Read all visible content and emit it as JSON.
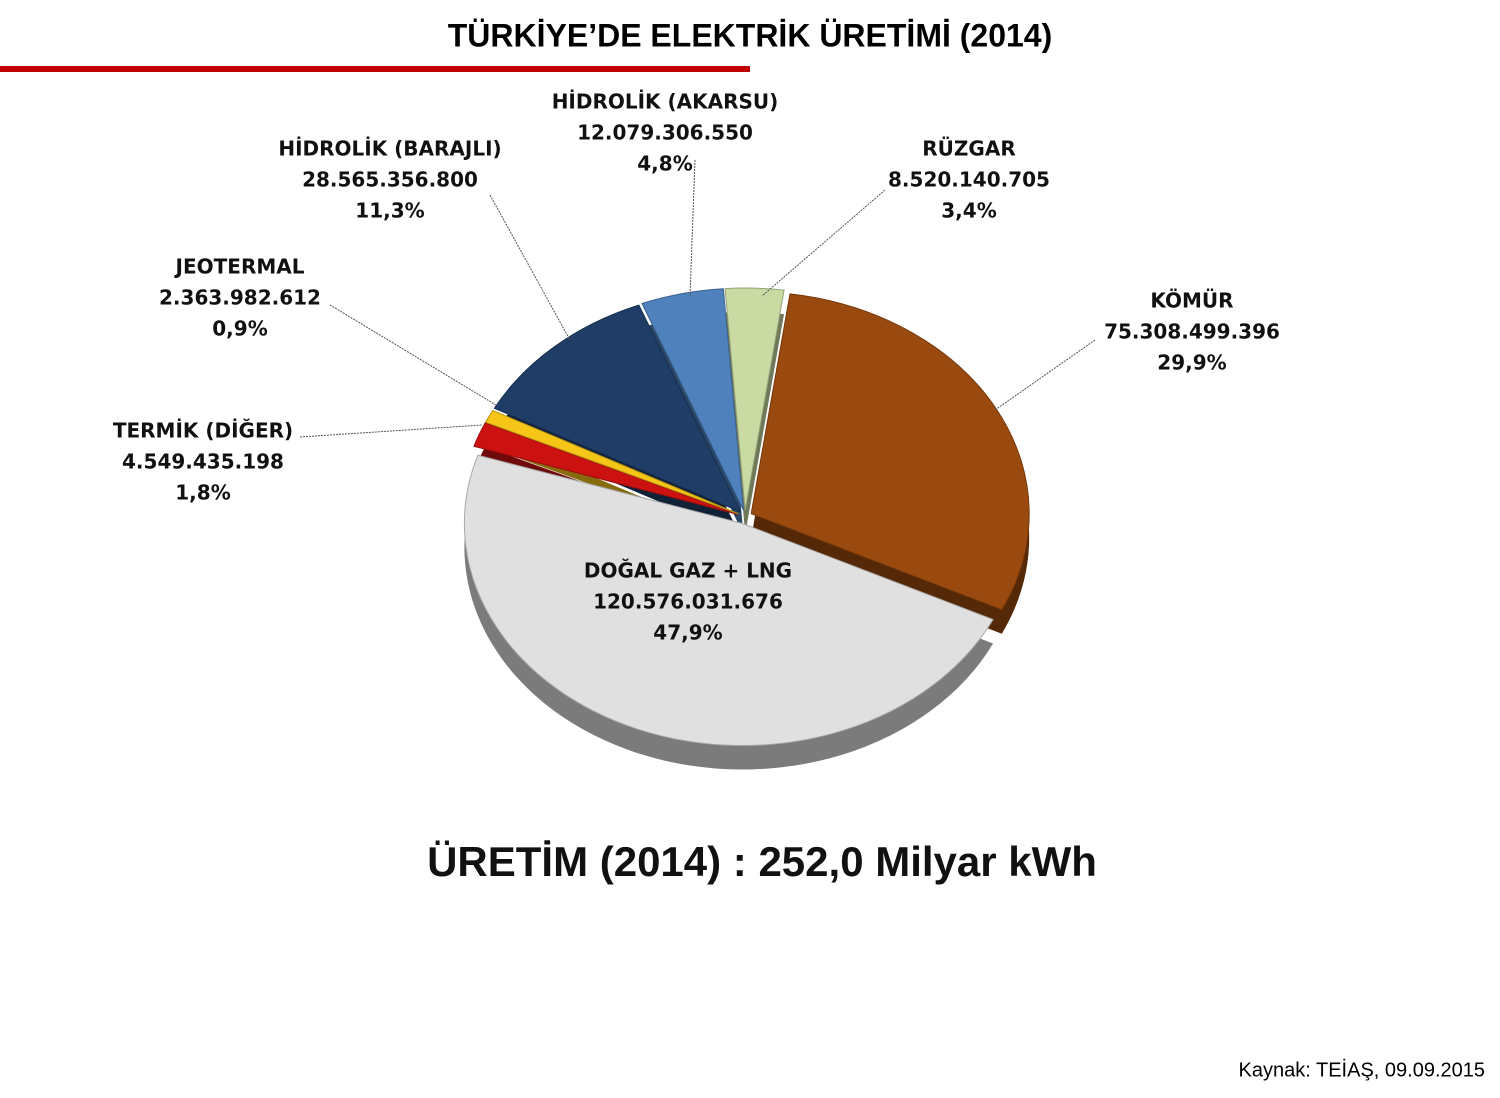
{
  "chart_data": {
    "type": "pie",
    "title": "TÜRKİYE’DE ELEKTRİK ÜRETİMİ (2014)",
    "categories": [
      "KÖMÜR",
      "DOĞAL GAZ + LNG",
      "TERMİK (DİĞER)",
      "JEOTERMAL",
      "HİDROLİK (BARAJLI)",
      "HİDROLİK (AKARSU)",
      "RÜZGAR"
    ],
    "values": [
      75308499396,
      120576031676,
      4549435198,
      2363982612,
      28565356800,
      12079306550,
      8520140705
    ],
    "value_labels": [
      "75.308.499.396",
      "120.576.031.676",
      "4.549.435.198",
      "2.363.982.612",
      "28.565.356.800",
      "12.079.306.550",
      "8.520.140.705"
    ],
    "percent_labels": [
      "29,9%",
      "47,9%",
      "1,8%",
      "0,9%",
      "11,3%",
      "4,8%",
      "3,4%"
    ],
    "colors": [
      "#9b4a0f",
      "#e0e0e0",
      "#cc1111",
      "#f5c518",
      "#1f3d66",
      "#4f81bd",
      "#c9dba2"
    ],
    "annotation": "ÜRETİM (2014) : 252,0 Milyar kWh",
    "source": "Kaynak: TEİAŞ, 09.09.2015"
  }
}
